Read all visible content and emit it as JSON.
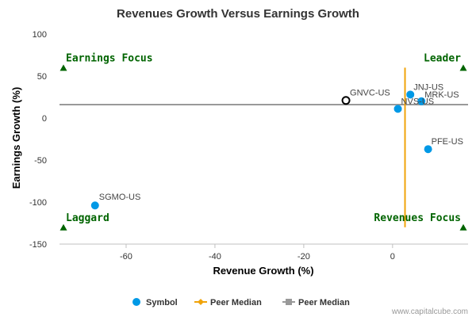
{
  "chart_data": {
    "type": "scatter",
    "title": "Revenues Growth Versus Earnings Growth",
    "xlabel": "Revenue Growth (%)",
    "ylabel": "Earnings Growth (%)",
    "xlim": [
      -75,
      17
    ],
    "ylim": [
      -150,
      100
    ],
    "x_ticks": [
      -60,
      -40,
      -20,
      0
    ],
    "y_ticks": [
      100,
      50,
      0,
      -50,
      -100,
      -150
    ],
    "grid": false,
    "legend_position": "bottom",
    "points": [
      {
        "label": "SGMO-US",
        "x": -67,
        "y": -104,
        "style": "filled",
        "color": "#0099e6"
      },
      {
        "label": "GNVC-US",
        "x": -10.5,
        "y": 21,
        "style": "hollow",
        "color": "#000000"
      },
      {
        "label": "JNJ-US",
        "x": 4,
        "y": 28,
        "style": "filled",
        "color": "#0099e6"
      },
      {
        "label": "MRK-US",
        "x": 6.5,
        "y": 20,
        "style": "filled",
        "color": "#0099e6"
      },
      {
        "label": "NVS-US",
        "x": 1.2,
        "y": 11,
        "style": "filled",
        "color": "#0099e6"
      },
      {
        "label": "PFE-US",
        "x": 8,
        "y": -37,
        "style": "filled",
        "color": "#0099e6"
      }
    ],
    "peer_median_x": 2.8,
    "peer_median_x_range": [
      -130,
      60
    ],
    "peer_median_y": 16,
    "quadrants": [
      {
        "label": "Earnings Focus",
        "x": -75,
        "y": 60,
        "anchor": "left"
      },
      {
        "label": "Leader",
        "x": 16,
        "y": 60,
        "anchor": "right"
      },
      {
        "label": "Laggard",
        "x": -75,
        "y": -130,
        "anchor": "left"
      },
      {
        "label": "Revenues Focus",
        "x": 16,
        "y": -130,
        "anchor": "right"
      }
    ],
    "legend": [
      {
        "label": "Symbol",
        "color": "#0099e6",
        "marker": "circle"
      },
      {
        "label": "Peer Median",
        "color": "#f0a30a",
        "marker": "diamond"
      },
      {
        "label": "Peer Median",
        "color": "#999999",
        "marker": "square"
      }
    ],
    "colors": {
      "median_x_line": "#f0a30a",
      "median_y_line": "#999999",
      "quadrant_marker": "#006400",
      "axis": "#c0c0c0"
    }
  },
  "credit": "www.capitalcube.com"
}
